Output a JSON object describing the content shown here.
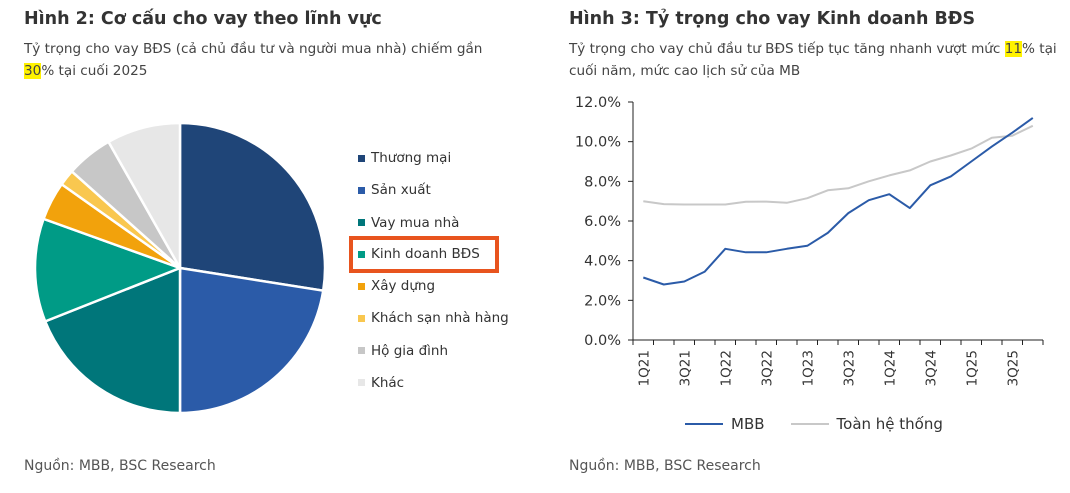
{
  "left": {
    "title": "Hình 2: Cơ cấu cho vay theo lĩnh vực",
    "subtitle_pre": "Tỷ trọng cho vay BĐS (cả chủ đầu tư và người mua nhà) chiếm gần ",
    "subtitle_hl": "30",
    "subtitle_post": "% tại cuối 2025",
    "source": "Nguồn: MBB, BSC Research"
  },
  "right": {
    "title": "Hình 3: Tỷ trọng cho vay Kinh doanh BĐS",
    "subtitle_pre": "Tỷ trọng cho vay chủ đầu tư BĐS tiếp tục tăng nhanh vượt mức ",
    "subtitle_hl": "11",
    "subtitle_post": "% tại cuối năm, mức cao lịch sử của MB",
    "source": "Nguồn: MBB, BSC Research"
  },
  "chart_data": [
    {
      "type": "pie",
      "title": "",
      "highlighted": "Kinh doanh BĐS",
      "legend_position": "right",
      "slices": [
        {
          "label": "Thương mại",
          "value": 27.5,
          "color": "#1f4578"
        },
        {
          "label": "Sản xuất",
          "value": 22.5,
          "color": "#2b5ba8"
        },
        {
          "label": "Vay mua nhà",
          "value": 19.0,
          "color": "#00767a"
        },
        {
          "label": "Kinh doanh BĐS",
          "value": 11.5,
          "color": "#009b86"
        },
        {
          "label": "Xây dựng",
          "value": 4.3,
          "color": "#f2a20c"
        },
        {
          "label": "Khách sạn nhà hàng",
          "value": 1.8,
          "color": "#f9c74f"
        },
        {
          "label": "Hộ gia đình",
          "value": 5.2,
          "color": "#c7c7c7"
        },
        {
          "label": "Khác",
          "value": 8.2,
          "color": "#e7e7e7"
        }
      ]
    },
    {
      "type": "line",
      "title": "",
      "xlabel": "",
      "ylabel": "",
      "ylim": [
        0,
        12
      ],
      "y_ticks": [
        "0.0%",
        "2.0%",
        "4.0%",
        "6.0%",
        "8.0%",
        "10.0%",
        "12.0%"
      ],
      "x_tick_labels": [
        "1Q21",
        "3Q21",
        "1Q22",
        "3Q22",
        "1Q23",
        "3Q23",
        "1Q24",
        "3Q24",
        "1Q25",
        "3Q25"
      ],
      "x": [
        "1Q21",
        "2Q21",
        "3Q21",
        "4Q21",
        "1Q22",
        "2Q22",
        "3Q22",
        "4Q22",
        "1Q23",
        "2Q23",
        "3Q23",
        "4Q23",
        "1Q24",
        "2Q24",
        "3Q24",
        "4Q24",
        "1Q25",
        "2Q25",
        "3Q25",
        "4Q25"
      ],
      "grid": false,
      "legend_position": "bottom",
      "series": [
        {
          "name": "MBB",
          "color": "#2b5ba8",
          "values": [
            3.15,
            2.8,
            2.95,
            3.45,
            4.6,
            4.42,
            4.42,
            4.6,
            4.75,
            5.4,
            6.4,
            7.05,
            7.35,
            6.65,
            7.8,
            8.25,
            9.0,
            9.75,
            10.45,
            11.2
          ]
        },
        {
          "name": "Toàn hệ thống",
          "color": "#c8c8c8",
          "values": [
            7.0,
            6.85,
            6.83,
            6.83,
            6.83,
            6.97,
            6.98,
            6.92,
            7.15,
            7.55,
            7.65,
            8.0,
            8.3,
            8.55,
            9.0,
            9.3,
            9.65,
            10.2,
            10.3,
            10.8
          ]
        }
      ]
    }
  ]
}
